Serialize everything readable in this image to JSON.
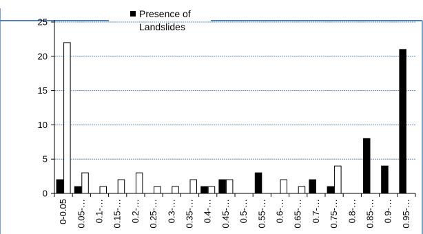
{
  "chart_data": {
    "type": "bar",
    "title": "",
    "xlabel": "",
    "ylabel": "",
    "ylim": [
      0,
      25
    ],
    "yticks": [
      "0",
      "5",
      "10",
      "15",
      "20",
      "25"
    ],
    "grid": true,
    "legend_position": "top",
    "categories": [
      "0-0.05",
      "0.05-…",
      "0.1-…",
      "0.15-…",
      "0.2-…",
      "0.25-…",
      "0.3-…",
      "0.35-…",
      "0.4-…",
      "0.45-…",
      "0.5-…",
      "0.55-…",
      "0.6-…",
      "0.65-…",
      "0.7-…",
      "0.75-…",
      "0.8-…",
      "0.85-…",
      "0.9-…",
      "0.95-…"
    ],
    "series": [
      {
        "name": "Presence of Landslides",
        "color": "#000000",
        "values": [
          2,
          1,
          0,
          0,
          0,
          0,
          0,
          0,
          1,
          2,
          0,
          3,
          0,
          0,
          2,
          1,
          0,
          8,
          4,
          21
        ]
      },
      {
        "name": "",
        "color": "#ffffff",
        "values": [
          22,
          3,
          1,
          2,
          3,
          1,
          1,
          2,
          1,
          2,
          0,
          0,
          2,
          1,
          0,
          4,
          0,
          0,
          0,
          0
        ]
      }
    ],
    "legend": {
      "line1": "Presence of",
      "line2": "Landslides"
    }
  }
}
